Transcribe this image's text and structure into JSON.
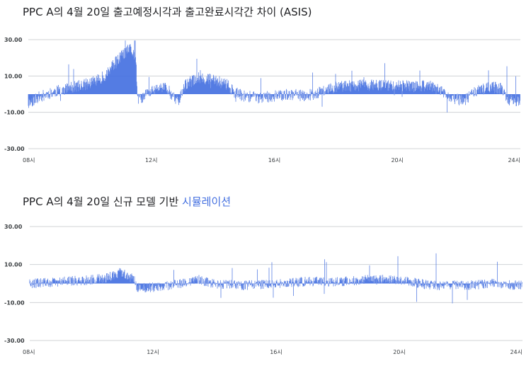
{
  "chart_data": [
    {
      "type": "bar",
      "title": "PPC A의 4월 20일 출고예정시각과 출고완료시각간 차이 (ASIS)",
      "yticks": [
        "30.00",
        "10.00",
        "-10.00",
        "-30.00"
      ],
      "ylim": [
        -30,
        30
      ],
      "xticks": [
        "08시",
        "12시",
        "16시",
        "20시",
        "24시"
      ],
      "xlim": [
        8,
        24
      ],
      "grid": true,
      "color": "#4470e0",
      "profile": [
        {
          "x": 8.0,
          "y": -5
        },
        {
          "x": 8.1,
          "y": -4
        },
        {
          "x": 8.3,
          "y": -2
        },
        {
          "x": 8.6,
          "y": 0
        },
        {
          "x": 9.0,
          "y": 2
        },
        {
          "x": 9.5,
          "y": 4
        },
        {
          "x": 10.0,
          "y": 6
        },
        {
          "x": 10.5,
          "y": 10
        },
        {
          "x": 10.8,
          "y": 17
        },
        {
          "x": 11.1,
          "y": 22
        },
        {
          "x": 11.3,
          "y": 25
        },
        {
          "x": 11.5,
          "y": 20
        },
        {
          "x": 11.55,
          "y": -3
        },
        {
          "x": 11.7,
          "y": -2
        },
        {
          "x": 11.9,
          "y": 1
        },
        {
          "x": 12.2,
          "y": 3
        },
        {
          "x": 12.5,
          "y": 4
        },
        {
          "x": 12.7,
          "y": -2
        },
        {
          "x": 12.9,
          "y": -3
        },
        {
          "x": 13.1,
          "y": 5
        },
        {
          "x": 13.5,
          "y": 9
        },
        {
          "x": 14.0,
          "y": 8
        },
        {
          "x": 14.5,
          "y": 5
        },
        {
          "x": 14.7,
          "y": 1
        },
        {
          "x": 15.0,
          "y": -1
        },
        {
          "x": 15.5,
          "y": -2
        },
        {
          "x": 16.0,
          "y": -1
        },
        {
          "x": 16.5,
          "y": 0
        },
        {
          "x": 17.0,
          "y": -1
        },
        {
          "x": 17.5,
          "y": 1
        },
        {
          "x": 18.0,
          "y": 4
        },
        {
          "x": 19.0,
          "y": 5
        },
        {
          "x": 20.0,
          "y": 5
        },
        {
          "x": 20.5,
          "y": 4
        },
        {
          "x": 21.0,
          "y": 5
        },
        {
          "x": 21.5,
          "y": 1
        },
        {
          "x": 21.8,
          "y": -3
        },
        {
          "x": 22.2,
          "y": -3
        },
        {
          "x": 22.5,
          "y": 1
        },
        {
          "x": 23.0,
          "y": 4
        },
        {
          "x": 23.4,
          "y": 3
        },
        {
          "x": 23.6,
          "y": -3
        },
        {
          "x": 24.0,
          "y": -4
        }
      ]
    },
    {
      "type": "bar",
      "title": "PPC A의 4월 20일 신규 모델 기반 시뮬레이션",
      "title_main": "PPC A의 4월 20일 신규 모델 기반 ",
      "title_accent": "시뮬레이션",
      "yticks": [
        "30.00",
        "10.00",
        "-10.00",
        "-30.00"
      ],
      "ylim": [
        -30,
        30
      ],
      "xticks": [
        "08시",
        "12시",
        "16시",
        "20시",
        "24시"
      ],
      "xlim": [
        8,
        24
      ],
      "grid": true,
      "color": "#4470e0",
      "profile": [
        {
          "x": 8.0,
          "y": 0
        },
        {
          "x": 9.0,
          "y": 1
        },
        {
          "x": 10.0,
          "y": 2
        },
        {
          "x": 10.5,
          "y": 3
        },
        {
          "x": 11.0,
          "y": 6
        },
        {
          "x": 11.4,
          "y": 2
        },
        {
          "x": 11.5,
          "y": -2
        },
        {
          "x": 12.0,
          "y": -2
        },
        {
          "x": 12.5,
          "y": -1
        },
        {
          "x": 13.0,
          "y": 0
        },
        {
          "x": 13.5,
          "y": 2
        },
        {
          "x": 14.0,
          "y": 0
        },
        {
          "x": 15.0,
          "y": -1
        },
        {
          "x": 16.0,
          "y": 0
        },
        {
          "x": 17.0,
          "y": 1
        },
        {
          "x": 18.0,
          "y": 1
        },
        {
          "x": 19.0,
          "y": 2
        },
        {
          "x": 20.0,
          "y": 2
        },
        {
          "x": 21.0,
          "y": -1
        },
        {
          "x": 22.0,
          "y": -1
        },
        {
          "x": 23.0,
          "y": 0
        },
        {
          "x": 24.0,
          "y": -1
        }
      ]
    }
  ]
}
